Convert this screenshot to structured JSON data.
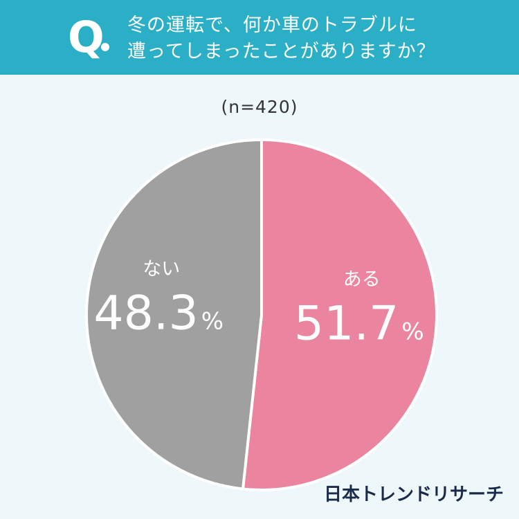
{
  "header": {
    "q_mark": "Q",
    "question_line1": "冬の運転で、何か車のトラブルに",
    "question_line2": "遭ってしまったことがありますか？"
  },
  "sample": "(n=420)",
  "brand": "日本トレンドリサーチ",
  "colors": {
    "header_bg": "#2aafc7",
    "page_bg": "#eef7fa",
    "yes": "#ea849f",
    "no": "#a0a0a0"
  },
  "chart_data": {
    "type": "pie",
    "title": "冬の運転で、何か車のトラブルに遭ってしまったことがありますか？",
    "slices": [
      {
        "label": "ある",
        "value": 51.7,
        "display": "51.7",
        "unit": "%",
        "color": "#ea849f"
      },
      {
        "label": "ない",
        "value": 48.3,
        "display": "48.3",
        "unit": "%",
        "color": "#a0a0a0"
      }
    ],
    "start": "top",
    "direction": "clockwise"
  }
}
